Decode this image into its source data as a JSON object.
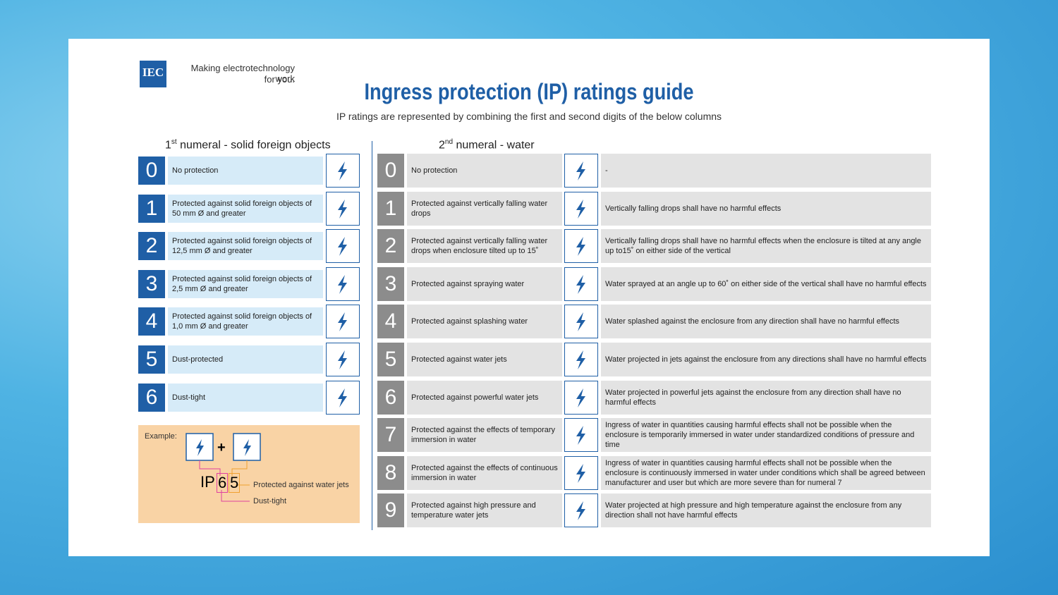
{
  "logo": {
    "mark": "IEC",
    "tagline": [
      "Making  electrotechnology work",
      "for you."
    ]
  },
  "header": {
    "title": "Ingress protection (IP) ratings guide",
    "subtitle": "IP ratings are represented by combining the first and second digits of the below columns"
  },
  "solids": {
    "heading": {
      "number": "1",
      "suffix": "st",
      "text": "numeral - solid foreign objects"
    },
    "rows": [
      {
        "digit": "0",
        "text": "No protection"
      },
      {
        "digit": "1",
        "text": "Protected against solid foreign objects of 50 mm Ø and greater"
      },
      {
        "digit": "2",
        "text": "Protected against solid foreign objects of 12,5 mm Ø and greater"
      },
      {
        "digit": "3",
        "text": "Protected against solid foreign objects of 2,5 mm Ø and greater"
      },
      {
        "digit": "4",
        "text": "Protected against solid foreign objects of 1,0 mm Ø and greater"
      },
      {
        "digit": "5",
        "text": "Dust-protected"
      },
      {
        "digit": "6",
        "text": "Dust-tight"
      }
    ]
  },
  "water": {
    "heading": {
      "number": "2",
      "suffix": "nd",
      "text": "numeral - water"
    },
    "rows": [
      {
        "digit": "0",
        "text": "No protection",
        "detail": "-"
      },
      {
        "digit": "1",
        "text": "Protected against vertically falling water drops",
        "detail": "Vertically falling drops shall have no harmful effects"
      },
      {
        "digit": "2",
        "text": "Protected against vertically falling water drops when enclosure tilted up to 15˚",
        "detail": "Vertically falling drops shall have no harmful effects when the enclosure is tilted at any angle up to15˚ on either side of the vertical"
      },
      {
        "digit": "3",
        "text": "Protected against spraying water",
        "detail": "Water sprayed at an angle up to 60˚ on either side of the vertical shall have no harmful effects"
      },
      {
        "digit": "4",
        "text": "Protected against splashing water",
        "detail": "Water splashed against the enclosure from any direction shall have no harmful effects"
      },
      {
        "digit": "5",
        "text": "Protected against water jets",
        "detail": "Water projected in jets against the enclosure from any directions shall have no harmful effects"
      },
      {
        "digit": "6",
        "text": "Protected against powerful water jets",
        "detail": "Water projected in powerful jets against the enclosure from any direction shall have no harmful effects"
      },
      {
        "digit": "7",
        "text": "Protected against the effects of temporary immersion in water",
        "detail": "Ingress of water in quantities causing harmful effects shall not be possible when the enclosure is temporarily immersed in water under standardized conditions of pressure and time"
      },
      {
        "digit": "8",
        "text": "Protected against the effects of continuous immersion in water",
        "detail": "Ingress of water in quantities causing harmful effects shall not be possible when the enclosure is continuously immersed in water under conditions which shall be agreed between manufacturer and user but which are more severe than for numeral 7"
      },
      {
        "digit": "9",
        "text": "Protected against high pressure and temperature water jets",
        "detail": "Water projected at high pressure and high temperature against the enclosure from any direction shall not have harmful effects"
      }
    ]
  },
  "example": {
    "label": "Example:",
    "plus": "+",
    "prefix": "IP",
    "first": "6",
    "second": "5",
    "second_meaning": "Protected against water jets",
    "first_meaning": "Dust-tight"
  }
}
